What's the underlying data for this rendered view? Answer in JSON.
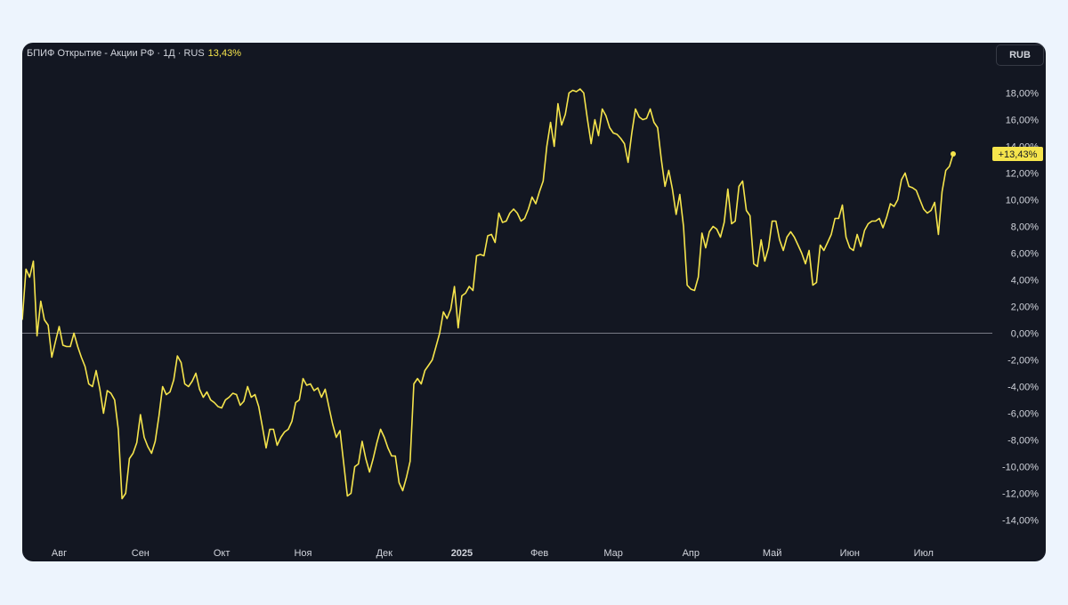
{
  "legend": {
    "title": "БПИФ Открытие - Акции РФ · 1Д · RUS",
    "change": "13,43%"
  },
  "currency_button": "RUB",
  "last_value_label": "+13,43%",
  "colors": {
    "background": "#131722",
    "line": "#f5e44c",
    "zero_line": "#787b86",
    "axis_text": "#d1d4dc",
    "label_bg": "#f5e44c",
    "label_text": "#131722"
  },
  "chart_data": {
    "type": "line",
    "series": [
      {
        "values": [
          1.0,
          4.8,
          4.2,
          5.4,
          -0.2,
          2.4,
          1.0,
          0.6,
          -1.8,
          -0.6,
          0.5,
          -0.9,
          -1.0,
          -1.0,
          0.0,
          -1.0,
          -1.8,
          -2.5,
          -3.8,
          -4.0,
          -2.8,
          -4.2,
          -6.0,
          -4.3,
          -4.5,
          -5.0,
          -7.2,
          -12.4,
          -12.0,
          -9.4,
          -9.0,
          -8.2,
          -6.1,
          -7.8,
          -8.5,
          -9.0,
          -8.1,
          -6.2,
          -4.0,
          -4.6,
          -4.4,
          -3.5,
          -1.7,
          -2.2,
          -3.8,
          -4.0,
          -3.6,
          -3.0,
          -4.2,
          -4.8,
          -4.4,
          -5.0,
          -5.2,
          -5.5,
          -5.6,
          -5.0,
          -4.8,
          -4.5,
          -4.6,
          -5.4,
          -5.1,
          -4.0,
          -4.8,
          -4.6,
          -5.5,
          -7.0,
          -8.6,
          -7.2,
          -7.2,
          -8.4,
          -7.8,
          -7.4,
          -7.2,
          -6.6,
          -5.2,
          -5.0,
          -3.4,
          -3.9,
          -3.8,
          -4.3,
          -4.1,
          -4.8,
          -4.2,
          -5.5,
          -6.8,
          -7.8,
          -7.3,
          -9.7,
          -12.2,
          -12.0,
          -10.0,
          -9.8,
          -8.1,
          -9.4,
          -10.4,
          -9.4,
          -8.2,
          -7.2,
          -7.8,
          -8.6,
          -9.2,
          -9.2,
          -11.2,
          -11.8,
          -10.8,
          -9.6,
          -3.8,
          -3.4,
          -3.8,
          -2.8,
          -2.4,
          -2.0,
          -1.0,
          0.0,
          1.6,
          1.1,
          1.8,
          3.5,
          0.4,
          2.8,
          3.0,
          3.5,
          3.2,
          5.8,
          5.9,
          5.8,
          7.3,
          7.4,
          6.8,
          9.0,
          8.3,
          8.4,
          9.0,
          9.3,
          9.0,
          8.4,
          8.6,
          9.3,
          10.2,
          9.7,
          10.6,
          11.4,
          14.0,
          15.8,
          14.0,
          17.2,
          15.6,
          16.4,
          18.0,
          18.2,
          18.1,
          18.3,
          18.0,
          16.0,
          14.2,
          16.0,
          14.8,
          16.8,
          16.3,
          15.4,
          15.0,
          14.9,
          14.6,
          14.2,
          12.8,
          15.0,
          16.8,
          16.2,
          16.0,
          16.1,
          16.8,
          15.8,
          15.4,
          13.0,
          11.0,
          12.2,
          10.8,
          8.9,
          10.4,
          8.0,
          3.6,
          3.3,
          3.2,
          4.2,
          7.5,
          6.4,
          7.6,
          8.0,
          7.8,
          7.2,
          8.3,
          10.8,
          8.2,
          8.4,
          11.0,
          11.4,
          9.2,
          8.8,
          5.2,
          5.0,
          7.0,
          5.4,
          6.4,
          8.4,
          8.4,
          7.0,
          6.2,
          7.2,
          7.6,
          7.2,
          6.6,
          6.0,
          5.2,
          6.2,
          3.6,
          3.8,
          6.6,
          6.2,
          6.8,
          7.4,
          8.6,
          8.6,
          9.6,
          7.2,
          6.4,
          6.2,
          7.4,
          6.5,
          7.7,
          8.2,
          8.4,
          8.4,
          8.6,
          7.9,
          8.7,
          9.7,
          9.5,
          10.0,
          11.5,
          12.0,
          11.0,
          10.9,
          10.7,
          10.0,
          9.3,
          9.0,
          9.2,
          9.8,
          7.4,
          10.6,
          12.2,
          12.5,
          13.43
        ]
      }
    ],
    "x_labels": [
      "Авг",
      "Сен",
      "Окт",
      "Ноя",
      "Дек",
      "2025",
      "Фев",
      "Мар",
      "Апр",
      "Май",
      "Июн",
      "Июл"
    ],
    "x_label_index": [
      10,
      32,
      54,
      76,
      98,
      119,
      140,
      160,
      181,
      203,
      224,
      244
    ],
    "y_ticks": [
      "-14,00%",
      "-12,00%",
      "-10,00%",
      "-8,00%",
      "-6,00%",
      "-4,00%",
      "-2,00%",
      "0,00%",
      "2,00%",
      "4,00%",
      "6,00%",
      "8,00%",
      "10,00%",
      "12,00%",
      "14,00%",
      "16,00%",
      "18,00%"
    ],
    "ylim": [
      -15,
      20
    ],
    "y_unit": "%",
    "grid": false,
    "zero_line": true
  }
}
